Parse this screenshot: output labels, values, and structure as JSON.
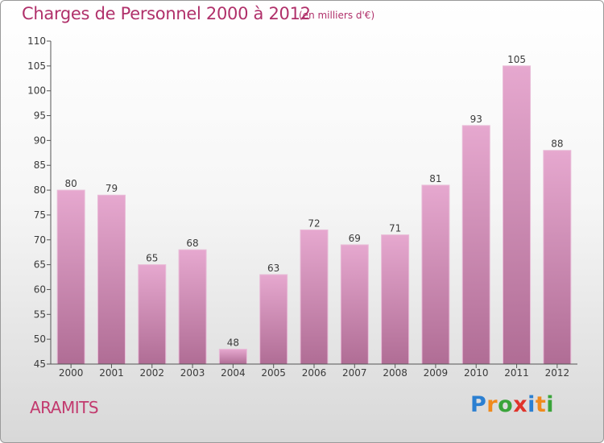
{
  "header": {
    "title": "Charges de Personnel 2000 à 2012",
    "subtitle": "(en milliers d'€)"
  },
  "footer": {
    "commune": "ARAMITS",
    "logo_text": "Proxiti",
    "logo_colors": [
      "#2b7fd1",
      "#f08a1c",
      "#3aa43a",
      "#e0342b",
      "#2b7fd1",
      "#f08a1c",
      "#3aa43a"
    ]
  },
  "colors": {
    "bar_top": "#e6a8cf",
    "bar_bottom": "#b06d95",
    "accent": "#b0306a"
  },
  "chart_data": {
    "type": "bar",
    "categories": [
      "2000",
      "2001",
      "2002",
      "2003",
      "2004",
      "2005",
      "2006",
      "2007",
      "2008",
      "2009",
      "2010",
      "2011",
      "2012"
    ],
    "values": [
      80,
      79,
      65,
      68,
      48,
      63,
      72,
      69,
      71,
      81,
      93,
      105,
      88
    ],
    "ylim": [
      45,
      110
    ],
    "yticks": [
      45,
      50,
      55,
      60,
      65,
      70,
      75,
      80,
      85,
      90,
      95,
      100,
      105,
      110
    ],
    "grid": false
  }
}
